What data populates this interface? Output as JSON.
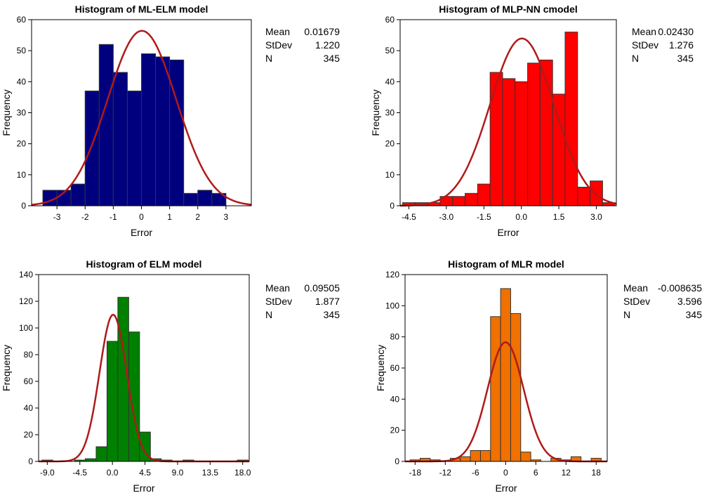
{
  "chart_data": [
    {
      "type": "bar",
      "title": "Histogram of ML-ELM model",
      "xlabel": "Error",
      "ylabel": "Frequency",
      "xlim": [
        -3.9,
        3.9
      ],
      "ylim": [
        0,
        60
      ],
      "xticks": [
        -3,
        -2,
        -1,
        0,
        1,
        2,
        3
      ],
      "xtick_labels": [
        "-3",
        "-2",
        "-1",
        "0",
        "1",
        "2",
        "3"
      ],
      "yticks": [
        0,
        10,
        20,
        30,
        40,
        50,
        60
      ],
      "bin_start": -3.5,
      "bin_width": 0.5,
      "values": [
        5,
        5,
        7,
        37,
        52,
        43,
        37,
        49,
        48,
        47,
        4,
        5,
        4
      ],
      "bar_color": "#00007f",
      "curve_color": "#b01a1a",
      "curve": {
        "mean": 0.01679,
        "stdev": 1.22,
        "n": 345
      },
      "stats": [
        {
          "label": "Mean",
          "value": "0.01679"
        },
        {
          "label": "StDev",
          "value": "1.220"
        },
        {
          "label": "N",
          "value": "345"
        }
      ]
    },
    {
      "type": "bar",
      "title": "Histogram of MLP-NN cmodel",
      "xlabel": "Error",
      "ylabel": "Frequency",
      "xlim": [
        -4.85,
        3.8
      ],
      "ylim": [
        0,
        60
      ],
      "xticks": [
        -4.5,
        -3.0,
        -1.5,
        0.0,
        1.5,
        3.0
      ],
      "xtick_labels": [
        "-4.5",
        "-3.0",
        "-1.5",
        "0.0",
        "1.5",
        "3.0"
      ],
      "yticks": [
        0,
        10,
        20,
        30,
        40,
        50,
        60
      ],
      "bin_start": -4.75,
      "bin_width": 0.5,
      "values": [
        1,
        1,
        1,
        3,
        3,
        4,
        7,
        43,
        41,
        40,
        46,
        47,
        36,
        56,
        6,
        8,
        1
      ],
      "bar_color": "#ff0000",
      "curve_color": "#b01a1a",
      "curve": {
        "mean": 0.0243,
        "stdev": 1.276,
        "n": 345
      },
      "stats": [
        {
          "label": "Mean",
          "value": "0.02430"
        },
        {
          "label": "StDev",
          "value": "1.276"
        },
        {
          "label": "N",
          "value": "345"
        }
      ]
    },
    {
      "type": "bar",
      "title": "Histogram of ELM model",
      "xlabel": "Error",
      "ylabel": "Frequency",
      "xlim": [
        -10.2,
        18.9
      ],
      "ylim": [
        0,
        140
      ],
      "xticks": [
        -9.0,
        -4.5,
        0.0,
        4.5,
        9.0,
        13.5,
        18.0
      ],
      "xtick_labels": [
        "-9.0",
        "-4.5",
        "0.0",
        "4.5",
        "9.0",
        "13.5",
        "18.0"
      ],
      "yticks": [
        0,
        20,
        40,
        60,
        80,
        100,
        120,
        140
      ],
      "bin_start": -9.75,
      "bin_width": 1.5,
      "values": [
        1,
        0,
        0,
        1,
        2,
        11,
        90,
        123,
        97,
        22,
        2,
        1,
        0,
        1,
        0,
        0,
        0,
        0,
        1
      ],
      "bar_color": "#008000",
      "curve_color": "#b01a1a",
      "curve": {
        "mean": 0.09505,
        "stdev": 1.877,
        "n": 345
      },
      "stats": [
        {
          "label": "Mean",
          "value": "0.09505"
        },
        {
          "label": "StDev",
          "value": "1.877"
        },
        {
          "label": "N",
          "value": "345"
        }
      ]
    },
    {
      "type": "bar",
      "title": "Histogram of MLR model",
      "xlabel": "Error",
      "ylabel": "Frequency",
      "xlim": [
        -20,
        20.2
      ],
      "ylim": [
        0,
        120
      ],
      "xticks": [
        -18,
        -12,
        -6,
        0,
        6,
        12,
        18
      ],
      "xtick_labels": [
        "-18",
        "-12",
        "-6",
        "0",
        "6",
        "12",
        "18"
      ],
      "yticks": [
        0,
        20,
        40,
        60,
        80,
        100,
        120
      ],
      "bin_start": -19,
      "bin_width": 2,
      "values": [
        1,
        2,
        1,
        0,
        2,
        3,
        7,
        7,
        93,
        111,
        95,
        6,
        1,
        0,
        2,
        1,
        3,
        0,
        2
      ],
      "bar_color": "#f07000",
      "curve_color": "#b01a1a",
      "curve": {
        "mean": -0.008635,
        "stdev": 3.596,
        "n": 345
      },
      "stats": [
        {
          "label": "Mean",
          "value": "-0.008635"
        },
        {
          "label": "StDev",
          "value": "3.596"
        },
        {
          "label": "N",
          "value": "345"
        }
      ]
    }
  ]
}
